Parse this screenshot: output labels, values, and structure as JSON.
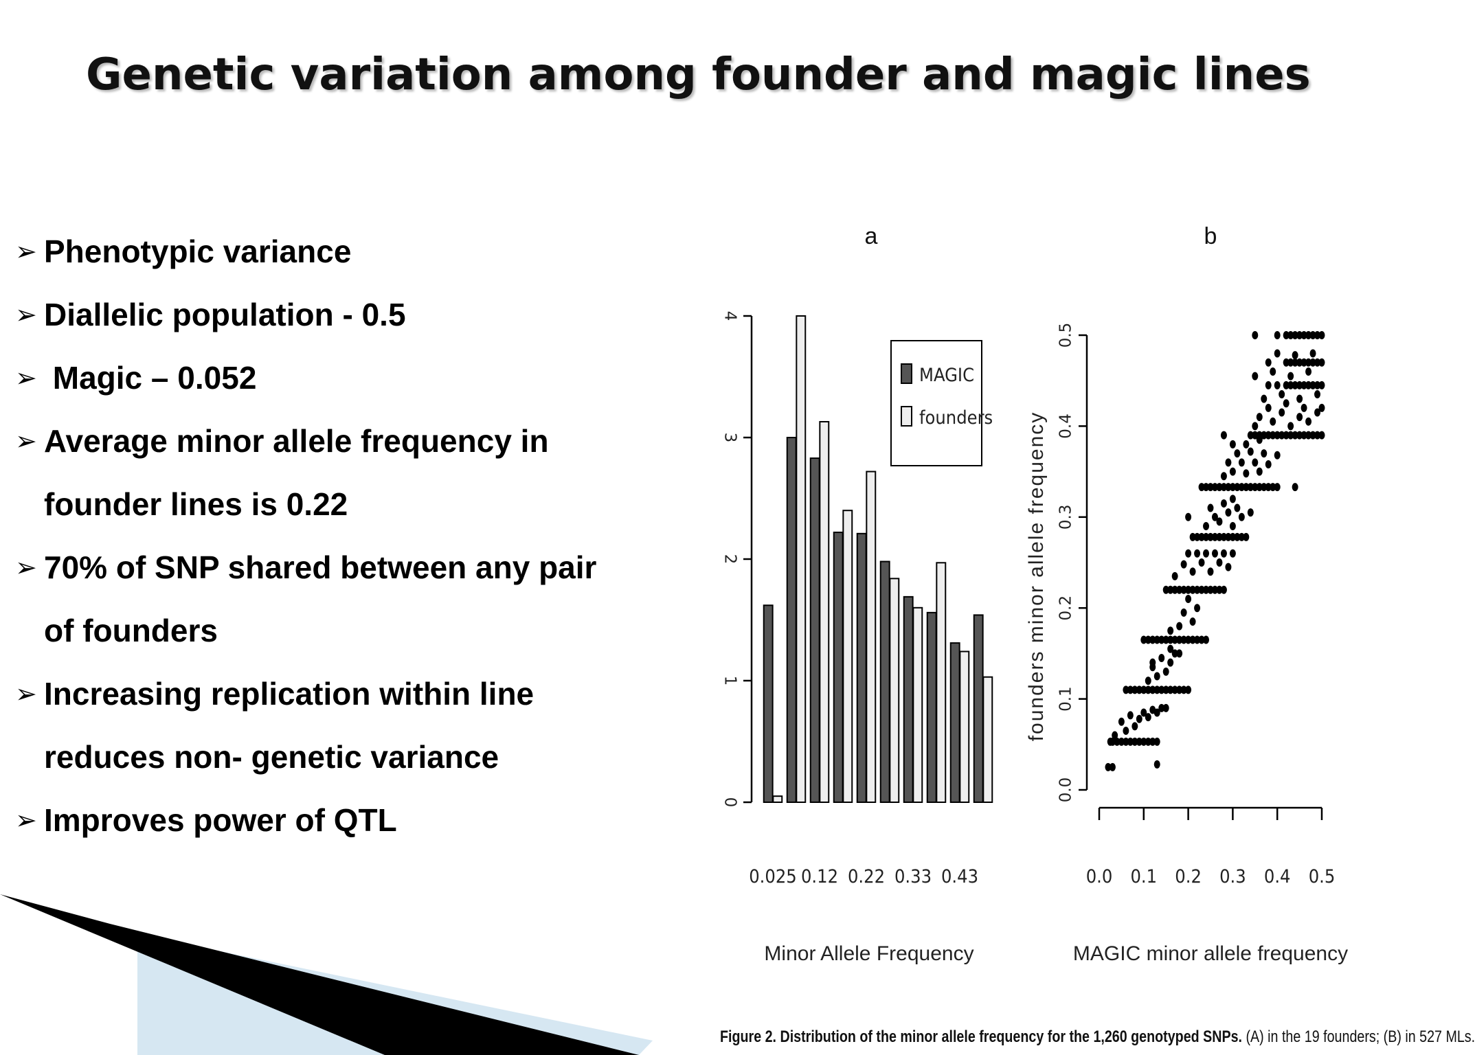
{
  "slide": {
    "title": "Genetic variation among founder and magic lines",
    "bullets": [
      {
        "lines": [
          "Phenotypic variance"
        ]
      },
      {
        "lines": [
          "Diallelic population - 0.5"
        ]
      },
      {
        "lines": [
          " Magic – 0.052"
        ]
      },
      {
        "lines": [
          "Average minor allele frequency in",
          "founder lines is 0.22"
        ]
      },
      {
        "lines": [
          "70% of SNP shared between any pair",
          "of founders"
        ]
      },
      {
        "lines": [
          "Increasing replication within line",
          "reduces non- genetic variance"
        ]
      },
      {
        "lines": [
          "Improves power of QTL"
        ]
      }
    ],
    "bullet_marker": "➢"
  },
  "figure": {
    "caption_bold": "Figure 2. Distribution of the minor allele frequency for the 1,260 genotyped SNPs.",
    "caption_rest": " (A) in the 19 founders; (B) in 527 MLs."
  },
  "chart_data": [
    {
      "type": "bar",
      "panel_label": "a",
      "xlabel": "Minor Allele Frequency",
      "ylabel": "",
      "ylim": [
        0,
        4
      ],
      "yticks": [
        0,
        1,
        2,
        3,
        4
      ],
      "tick_labels": [
        "0.025",
        "0.12",
        "0.22",
        "0.33",
        "0.43"
      ],
      "legend_position": "top-right",
      "series": [
        {
          "name": "MAGIC",
          "color": "#555555",
          "values": [
            1.62,
            3.0,
            2.83,
            2.22,
            2.21,
            1.98,
            1.69,
            1.56,
            1.31,
            1.54
          ]
        },
        {
          "name": "founders",
          "color": "#eeeeee",
          "values": [
            0.05,
            4.0,
            3.13,
            2.4,
            2.72,
            1.84,
            1.6,
            1.97,
            1.24,
            1.03
          ]
        }
      ],
      "grid": false
    },
    {
      "type": "scatter",
      "panel_label": "b",
      "xlabel": "MAGIC minor allele frequency",
      "ylabel": "founders minor allele frequency",
      "xlim": [
        0,
        0.5
      ],
      "ylim": [
        0,
        0.5
      ],
      "xticks": [
        0,
        0.1,
        0.2,
        0.3,
        0.4,
        0.5
      ],
      "yticks": [
        0,
        0.1,
        0.2,
        0.3,
        0.4,
        0.5
      ],
      "xtick_labels": [
        "0.0",
        "0.1",
        "0.2",
        "0.3",
        "0.4",
        "0.5"
      ],
      "ytick_labels": [
        "0.0",
        "0.1",
        "0.2",
        "0.3",
        "0.4",
        "0.5"
      ],
      "marker_color": "#000000",
      "points": [
        [
          0.02,
          0.025
        ],
        [
          0.03,
          0.025
        ],
        [
          0.13,
          0.028
        ],
        [
          0.025,
          0.053
        ],
        [
          0.03,
          0.053
        ],
        [
          0.04,
          0.053
        ],
        [
          0.05,
          0.053
        ],
        [
          0.06,
          0.053
        ],
        [
          0.07,
          0.053
        ],
        [
          0.08,
          0.053
        ],
        [
          0.09,
          0.053
        ],
        [
          0.1,
          0.053
        ],
        [
          0.11,
          0.053
        ],
        [
          0.12,
          0.053
        ],
        [
          0.13,
          0.053
        ],
        [
          0.035,
          0.06
        ],
        [
          0.06,
          0.065
        ],
        [
          0.08,
          0.07
        ],
        [
          0.05,
          0.075
        ],
        [
          0.09,
          0.078
        ],
        [
          0.11,
          0.08
        ],
        [
          0.07,
          0.082
        ],
        [
          0.1,
          0.085
        ],
        [
          0.12,
          0.088
        ],
        [
          0.13,
          0.085
        ],
        [
          0.14,
          0.09
        ],
        [
          0.15,
          0.09
        ],
        [
          0.06,
          0.11
        ],
        [
          0.07,
          0.11
        ],
        [
          0.08,
          0.11
        ],
        [
          0.09,
          0.11
        ],
        [
          0.1,
          0.11
        ],
        [
          0.11,
          0.11
        ],
        [
          0.12,
          0.11
        ],
        [
          0.13,
          0.11
        ],
        [
          0.14,
          0.11
        ],
        [
          0.15,
          0.11
        ],
        [
          0.16,
          0.11
        ],
        [
          0.17,
          0.11
        ],
        [
          0.18,
          0.11
        ],
        [
          0.19,
          0.11
        ],
        [
          0.2,
          0.11
        ],
        [
          0.11,
          0.12
        ],
        [
          0.13,
          0.125
        ],
        [
          0.15,
          0.13
        ],
        [
          0.12,
          0.135
        ],
        [
          0.16,
          0.14
        ],
        [
          0.14,
          0.145
        ],
        [
          0.17,
          0.15
        ],
        [
          0.12,
          0.14
        ],
        [
          0.18,
          0.15
        ],
        [
          0.16,
          0.155
        ],
        [
          0.1,
          0.165
        ],
        [
          0.11,
          0.165
        ],
        [
          0.12,
          0.165
        ],
        [
          0.13,
          0.165
        ],
        [
          0.14,
          0.165
        ],
        [
          0.15,
          0.165
        ],
        [
          0.16,
          0.165
        ],
        [
          0.17,
          0.165
        ],
        [
          0.18,
          0.165
        ],
        [
          0.19,
          0.165
        ],
        [
          0.2,
          0.165
        ],
        [
          0.21,
          0.165
        ],
        [
          0.22,
          0.165
        ],
        [
          0.23,
          0.165
        ],
        [
          0.24,
          0.165
        ],
        [
          0.16,
          0.175
        ],
        [
          0.18,
          0.18
        ],
        [
          0.21,
          0.185
        ],
        [
          0.19,
          0.195
        ],
        [
          0.22,
          0.2
        ],
        [
          0.2,
          0.21
        ],
        [
          0.15,
          0.22
        ],
        [
          0.16,
          0.22
        ],
        [
          0.17,
          0.22
        ],
        [
          0.18,
          0.22
        ],
        [
          0.19,
          0.22
        ],
        [
          0.2,
          0.22
        ],
        [
          0.21,
          0.22
        ],
        [
          0.22,
          0.22
        ],
        [
          0.23,
          0.22
        ],
        [
          0.24,
          0.22
        ],
        [
          0.25,
          0.22
        ],
        [
          0.26,
          0.22
        ],
        [
          0.27,
          0.22
        ],
        [
          0.28,
          0.22
        ],
        [
          0.17,
          0.235
        ],
        [
          0.21,
          0.24
        ],
        [
          0.25,
          0.24
        ],
        [
          0.19,
          0.248
        ],
        [
          0.23,
          0.25
        ],
        [
          0.27,
          0.25
        ],
        [
          0.29,
          0.245
        ],
        [
          0.2,
          0.26
        ],
        [
          0.22,
          0.26
        ],
        [
          0.24,
          0.26
        ],
        [
          0.26,
          0.26
        ],
        [
          0.28,
          0.26
        ],
        [
          0.3,
          0.26
        ],
        [
          0.21,
          0.278
        ],
        [
          0.22,
          0.278
        ],
        [
          0.23,
          0.278
        ],
        [
          0.24,
          0.278
        ],
        [
          0.25,
          0.278
        ],
        [
          0.26,
          0.278
        ],
        [
          0.27,
          0.278
        ],
        [
          0.28,
          0.278
        ],
        [
          0.29,
          0.278
        ],
        [
          0.3,
          0.278
        ],
        [
          0.31,
          0.278
        ],
        [
          0.32,
          0.278
        ],
        [
          0.33,
          0.278
        ],
        [
          0.2,
          0.3
        ],
        [
          0.24,
          0.29
        ],
        [
          0.27,
          0.295
        ],
        [
          0.3,
          0.29
        ],
        [
          0.26,
          0.3
        ],
        [
          0.29,
          0.305
        ],
        [
          0.32,
          0.3
        ],
        [
          0.25,
          0.31
        ],
        [
          0.28,
          0.315
        ],
        [
          0.31,
          0.31
        ],
        [
          0.34,
          0.305
        ],
        [
          0.3,
          0.32
        ],
        [
          0.23,
          0.333
        ],
        [
          0.24,
          0.333
        ],
        [
          0.25,
          0.333
        ],
        [
          0.26,
          0.333
        ],
        [
          0.27,
          0.333
        ],
        [
          0.28,
          0.333
        ],
        [
          0.29,
          0.333
        ],
        [
          0.3,
          0.333
        ],
        [
          0.31,
          0.333
        ],
        [
          0.32,
          0.333
        ],
        [
          0.33,
          0.333
        ],
        [
          0.34,
          0.333
        ],
        [
          0.35,
          0.333
        ],
        [
          0.36,
          0.333
        ],
        [
          0.37,
          0.333
        ],
        [
          0.38,
          0.333
        ],
        [
          0.39,
          0.333
        ],
        [
          0.4,
          0.333
        ],
        [
          0.44,
          0.333
        ],
        [
          0.28,
          0.345
        ],
        [
          0.3,
          0.35
        ],
        [
          0.33,
          0.348
        ],
        [
          0.36,
          0.35
        ],
        [
          0.29,
          0.36
        ],
        [
          0.32,
          0.36
        ],
        [
          0.35,
          0.36
        ],
        [
          0.38,
          0.358
        ],
        [
          0.31,
          0.37
        ],
        [
          0.34,
          0.372
        ],
        [
          0.37,
          0.37
        ],
        [
          0.4,
          0.368
        ],
        [
          0.3,
          0.38
        ],
        [
          0.33,
          0.38
        ],
        [
          0.36,
          0.385
        ],
        [
          0.34,
          0.39
        ],
        [
          0.35,
          0.39
        ],
        [
          0.36,
          0.39
        ],
        [
          0.37,
          0.39
        ],
        [
          0.38,
          0.39
        ],
        [
          0.39,
          0.39
        ],
        [
          0.4,
          0.39
        ],
        [
          0.41,
          0.39
        ],
        [
          0.42,
          0.39
        ],
        [
          0.43,
          0.39
        ],
        [
          0.44,
          0.39
        ],
        [
          0.45,
          0.39
        ],
        [
          0.46,
          0.39
        ],
        [
          0.47,
          0.39
        ],
        [
          0.48,
          0.39
        ],
        [
          0.49,
          0.39
        ],
        [
          0.5,
          0.39
        ],
        [
          0.28,
          0.39
        ],
        [
          0.35,
          0.4
        ],
        [
          0.39,
          0.405
        ],
        [
          0.43,
          0.4
        ],
        [
          0.47,
          0.405
        ],
        [
          0.36,
          0.41
        ],
        [
          0.41,
          0.415
        ],
        [
          0.45,
          0.41
        ],
        [
          0.49,
          0.415
        ],
        [
          0.38,
          0.42
        ],
        [
          0.42,
          0.425
        ],
        [
          0.46,
          0.42
        ],
        [
          0.5,
          0.42
        ],
        [
          0.38,
          0.445
        ],
        [
          0.4,
          0.445
        ],
        [
          0.42,
          0.445
        ],
        [
          0.43,
          0.445
        ],
        [
          0.44,
          0.445
        ],
        [
          0.45,
          0.445
        ],
        [
          0.46,
          0.445
        ],
        [
          0.47,
          0.445
        ],
        [
          0.48,
          0.445
        ],
        [
          0.49,
          0.445
        ],
        [
          0.5,
          0.445
        ],
        [
          0.35,
          0.455
        ],
        [
          0.39,
          0.46
        ],
        [
          0.43,
          0.455
        ],
        [
          0.47,
          0.46
        ],
        [
          0.37,
          0.43
        ],
        [
          0.41,
          0.435
        ],
        [
          0.45,
          0.43
        ],
        [
          0.49,
          0.435
        ],
        [
          0.38,
          0.47
        ],
        [
          0.42,
          0.47
        ],
        [
          0.43,
          0.47
        ],
        [
          0.44,
          0.47
        ],
        [
          0.45,
          0.47
        ],
        [
          0.46,
          0.47
        ],
        [
          0.47,
          0.47
        ],
        [
          0.48,
          0.47
        ],
        [
          0.49,
          0.47
        ],
        [
          0.5,
          0.47
        ],
        [
          0.4,
          0.48
        ],
        [
          0.44,
          0.478
        ],
        [
          0.48,
          0.48
        ],
        [
          0.35,
          0.5
        ],
        [
          0.4,
          0.5
        ],
        [
          0.42,
          0.5
        ],
        [
          0.43,
          0.5
        ],
        [
          0.44,
          0.5
        ],
        [
          0.45,
          0.5
        ],
        [
          0.46,
          0.5
        ],
        [
          0.47,
          0.5
        ],
        [
          0.48,
          0.5
        ],
        [
          0.49,
          0.5
        ],
        [
          0.5,
          0.5
        ]
      ],
      "grid": false
    }
  ]
}
